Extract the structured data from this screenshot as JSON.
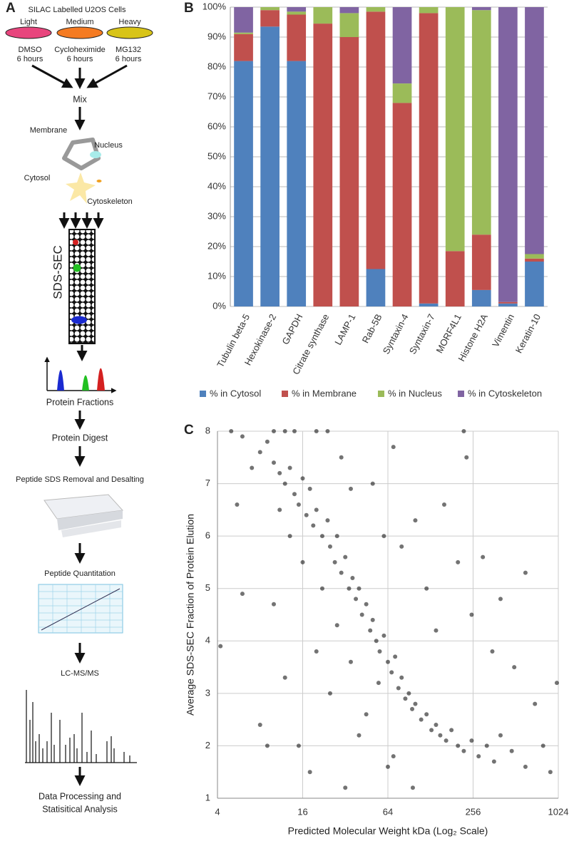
{
  "panel_a": {
    "label": "A",
    "title": "SILAC Labelled U2OS Cells",
    "dishes": [
      {
        "label": "Light",
        "treatment": "DMSO",
        "duration": "6 hours"
      },
      {
        "label": "Medium",
        "treatment": "Cycloheximide",
        "duration": "6 hours"
      },
      {
        "label": "Heavy",
        "treatment": "MG132",
        "duration": "6 hours"
      }
    ],
    "mix": "Mix",
    "compartments": {
      "membrane": "Membrane",
      "nucleus": "Nucleus",
      "cytosol": "Cytosol",
      "cytoskeleton": "Cytoskeleton"
    },
    "column": "SDS-SEC",
    "steps": [
      "Protein Fractions",
      "Protein Digest",
      "Peptide SDS Removal and Desalting",
      "Peptide Quantitation",
      "LC-MS/MS"
    ],
    "final_step": [
      "Data Processing and",
      "Statisitical Analysis"
    ]
  },
  "chart_data": [
    {
      "type": "stacked_bar",
      "panel_label": "B",
      "categories": [
        "Tubulin beta-5",
        "Hexokinase-2",
        "GAPDH",
        "Citrate synthase",
        "LAMP-1",
        "Rab-5B",
        "Syntaxin-4",
        "Syntaxin-7",
        "MORF4L1",
        "Histone H2A",
        "Vimentin",
        "Keratin-10"
      ],
      "series": [
        {
          "name": "% in Cytosol",
          "color": "#4f81bd",
          "values": [
            82,
            93.5,
            82,
            0,
            0,
            12.5,
            0,
            1,
            0,
            5.5,
            1,
            15
          ]
        },
        {
          "name": "% in Membrane",
          "color": "#c0504d",
          "values": [
            9,
            5.5,
            15.5,
            94.5,
            90,
            86,
            68,
            97,
            18.5,
            18.5,
            0.5,
            1
          ]
        },
        {
          "name": "% in Nucleus",
          "color": "#9bbb59",
          "values": [
            0.5,
            1,
            1,
            5.5,
            8,
            1.5,
            6.5,
            2,
            81.5,
            75,
            0,
            1.5
          ]
        },
        {
          "name": "% in Cytoskeleton",
          "color": "#8064a2",
          "values": [
            8.5,
            0,
            1.5,
            0,
            2,
            0,
            25.5,
            0,
            0,
            1,
            98.5,
            82.5
          ]
        }
      ],
      "ylim": [
        0,
        100
      ],
      "yticks": [
        {
          "value": 0,
          "label": "0%"
        },
        {
          "value": 10,
          "label": "10%"
        },
        {
          "value": 20,
          "label": "20%"
        },
        {
          "value": 30,
          "label": "30%"
        },
        {
          "value": 40,
          "label": "40%"
        },
        {
          "value": 50,
          "label": "50%"
        },
        {
          "value": 60,
          "label": "60%"
        },
        {
          "value": 70,
          "label": "70%"
        },
        {
          "value": 80,
          "label": "80%"
        },
        {
          "value": 90,
          "label": "90%"
        },
        {
          "value": 100,
          "label": "100%"
        }
      ],
      "grid": true,
      "legend": "bottom"
    },
    {
      "type": "scatter",
      "panel_label": "C",
      "x_label": "Predicted Molecular Weight kDa (Log₂ Scale)",
      "y_label": "Average SDS-SEC Fraction of Protein Elution",
      "x_scale": "log2",
      "xlim": [
        4,
        1024
      ],
      "ylim": [
        1,
        8
      ],
      "xticks": [
        4,
        16,
        64,
        256,
        1024
      ],
      "yticks": [
        1,
        2,
        3,
        4,
        5,
        6,
        7,
        8
      ],
      "grid": true,
      "color": "#000000",
      "x": [
        5,
        6,
        4.2,
        7,
        8,
        9,
        10,
        11,
        12,
        13,
        14,
        15,
        16,
        17,
        18,
        19,
        20,
        22,
        24,
        25,
        27,
        28,
        30,
        32,
        34,
        36,
        38,
        40,
        42,
        45,
        48,
        50,
        53,
        56,
        60,
        64,
        68,
        72,
        76,
        80,
        85,
        90,
        95,
        100,
        110,
        120,
        130,
        140,
        150,
        165,
        180,
        200,
        220,
        250,
        280,
        320,
        360,
        400,
        480,
        600,
        800,
        1000,
        900,
        8,
        10,
        12,
        15,
        20,
        25,
        30,
        35,
        40,
        50,
        60,
        70,
        80,
        100,
        120,
        140,
        160,
        200,
        230,
        250,
        300,
        350,
        400,
        500,
        600,
        700,
        10,
        12,
        14,
        20,
        24,
        220,
        6,
        5.5,
        9,
        18,
        32,
        64,
        96,
        70,
        45,
        55,
        35,
        28,
        22,
        16,
        13,
        11
      ],
      "y": [
        8,
        7.9,
        3.9,
        7.3,
        7.6,
        7.8,
        7.4,
        7.2,
        7,
        7.3,
        6.8,
        6.6,
        7.1,
        6.4,
        6.9,
        6.2,
        6.5,
        6,
        6.3,
        5.8,
        5.5,
        6,
        5.3,
        5.6,
        5,
        5.2,
        4.8,
        5,
        4.5,
        4.7,
        4.2,
        4.4,
        4,
        3.8,
        4.1,
        3.6,
        3.4,
        3.7,
        3.1,
        3.3,
        2.9,
        3,
        2.7,
        2.8,
        2.5,
        2.6,
        2.3,
        2.4,
        2.2,
        2.1,
        2.3,
        2,
        1.9,
        2.1,
        1.8,
        2,
        1.7,
        2.2,
        1.9,
        1.6,
        2,
        3.2,
        1.5,
        2.4,
        4.7,
        3.3,
        2,
        3.8,
        3,
        7.5,
        6.9,
        2.2,
        7,
        6,
        7.7,
        5.8,
        6.3,
        5,
        4.2,
        6.6,
        5.5,
        7.5,
        4.5,
        5.6,
        3.8,
        4.8,
        3.5,
        5.3,
        2.8,
        8,
        8,
        8,
        8,
        8,
        8,
        4.9,
        6.6,
        2,
        1.5,
        1.2,
        1.6,
        1.2,
        1.8,
        2.6,
        3.2,
        3.6,
        4.3,
        5,
        5.5,
        6,
        6.5
      ]
    }
  ]
}
